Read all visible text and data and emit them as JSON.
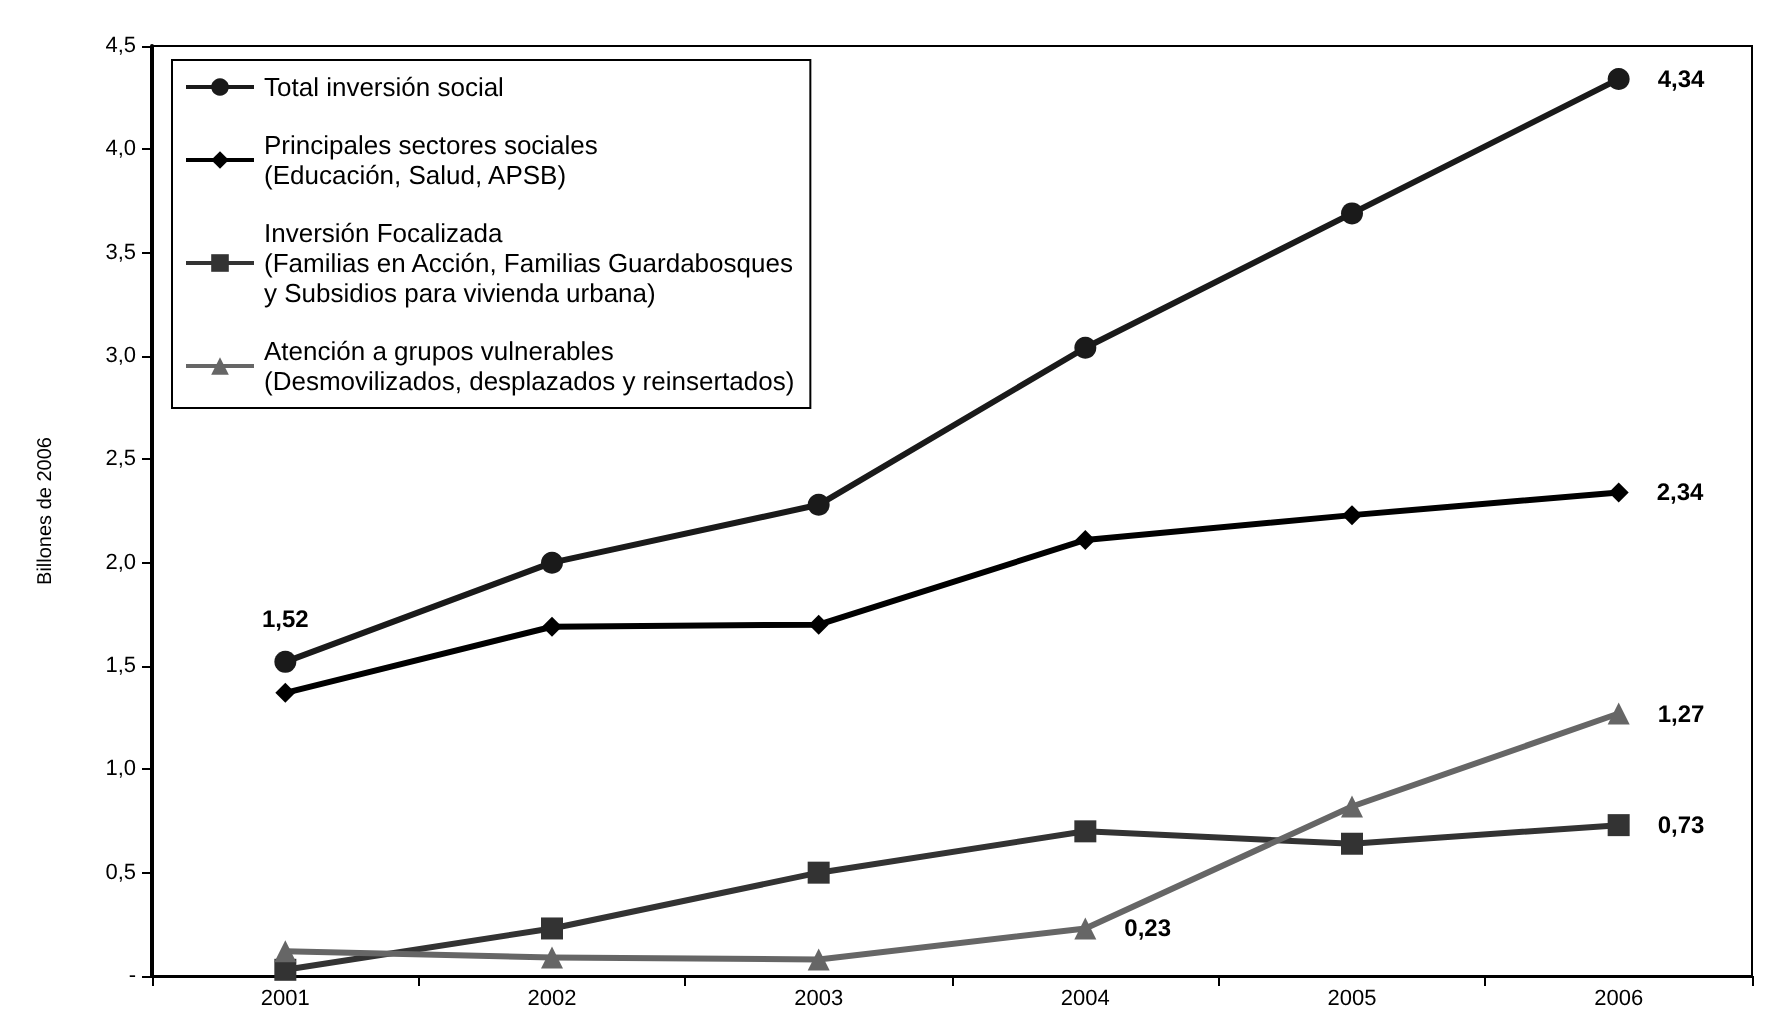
{
  "chart_data": {
    "type": "line",
    "ylabel": "Billones de 2006",
    "categories": [
      "2001",
      "2002",
      "2003",
      "2004",
      "2005",
      "2006"
    ],
    "series": [
      {
        "name": "Total inversión social",
        "color": "#1a1a1a",
        "marker": "circle",
        "values": [
          1.52,
          2.0,
          2.28,
          3.04,
          3.69,
          4.34
        ],
        "value_labels": [
          "1,52",
          null,
          null,
          null,
          null,
          "4,34"
        ]
      },
      {
        "name": "Principales sectores sociales\n(Educación, Salud, APSB)",
        "color": "#000000",
        "marker": "diamond",
        "values": [
          1.37,
          1.69,
          1.7,
          2.11,
          2.23,
          2.34
        ],
        "value_labels": [
          null,
          null,
          null,
          null,
          null,
          "2,34"
        ]
      },
      {
        "name": "Inversión Focalizada\n(Familias en Acción, Familias Guardabosques\ny Subsidios para vivienda urbana)",
        "color": "#333333",
        "marker": "square",
        "values": [
          0.03,
          0.23,
          0.5,
          0.7,
          0.64,
          0.73
        ],
        "value_labels": [
          null,
          null,
          null,
          null,
          null,
          "0,73"
        ]
      },
      {
        "name": "Atención a grupos vulnerables\n(Desmovilizados, desplazados y reinsertados)",
        "color": "#666666",
        "marker": "triangle",
        "values": [
          0.12,
          0.09,
          0.08,
          0.23,
          0.82,
          1.27
        ],
        "value_labels": [
          null,
          null,
          null,
          "0,23",
          null,
          "1,27"
        ]
      }
    ],
    "ylim": [
      0,
      4.5
    ],
    "yticks": [
      {
        "value": 0,
        "label": "-"
      },
      {
        "value": 0.5,
        "label": "0,5"
      },
      {
        "value": 1,
        "label": "1,0"
      },
      {
        "value": 1.5,
        "label": "1,5"
      },
      {
        "value": 2,
        "label": "2,0"
      },
      {
        "value": 2.5,
        "label": "2,5"
      },
      {
        "value": 3,
        "label": "3,0"
      },
      {
        "value": 3.5,
        "label": "3,5"
      },
      {
        "value": 4,
        "label": "4,0"
      },
      {
        "value": 4.5,
        "label": "4,5"
      }
    ],
    "grid": false,
    "legend": "top left"
  }
}
